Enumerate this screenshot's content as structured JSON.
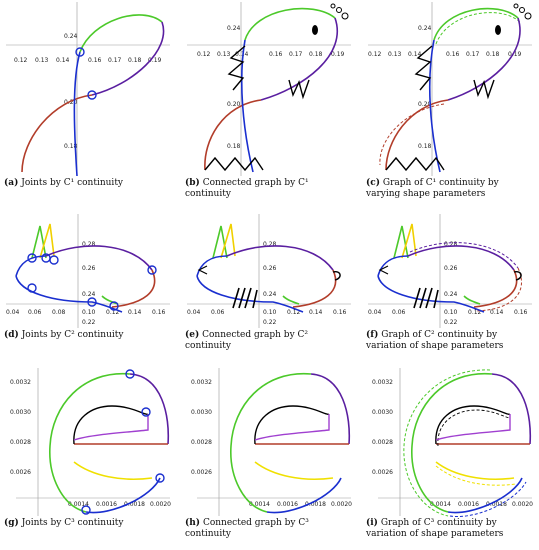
{
  "colors": {
    "green": "#4cc92a",
    "purple": "#5a1fa0",
    "red": "#b23d2a",
    "blue": "#1a2fcf",
    "yellow": "#f0e000",
    "magenta": "#a040d0",
    "black": "#000000"
  },
  "panels": [
    {
      "id": "a",
      "label": "(a)",
      "caption": "Joints by C¹ continuity",
      "xticks": [
        "0.12",
        "0.13",
        "0.14",
        "0.16",
        "0.17",
        "0.18",
        "0.19"
      ],
      "yticks": [
        "0.24",
        "0.20",
        "0.18"
      ]
    },
    {
      "id": "b",
      "label": "(b)",
      "caption": "Connected graph by C¹ continuity",
      "xticks": [
        "0.12",
        "0.13",
        "0.14",
        "0.16",
        "0.17",
        "0.18",
        "0.19"
      ],
      "yticks": [
        "0.24",
        "0.20",
        "0.18"
      ]
    },
    {
      "id": "c",
      "label": "(c)",
      "caption": "Graph of C¹ continuity by varying shape parameters",
      "xticks": [
        "0.12",
        "0.13",
        "0.14",
        "0.16",
        "0.17",
        "0.18",
        "0.19"
      ],
      "yticks": [
        "0.24",
        "0.20",
        "0.18"
      ]
    },
    {
      "id": "d",
      "label": "(d)",
      "caption": "Joints by C² continuity",
      "xticks": [
        "0.04",
        "0.06",
        "0.08",
        "0.10",
        "0.12",
        "0.14",
        "0.16"
      ],
      "yticks": [
        "0.28",
        "0.26",
        "0.24",
        "0.22"
      ]
    },
    {
      "id": "e",
      "label": "(e)",
      "caption": "Connected graph by C² continuity",
      "xticks": [
        "0.04",
        "0.06",
        "0.10",
        "0.12",
        "0.14",
        "0.16"
      ],
      "yticks": [
        "0.28",
        "0.26",
        "0.24",
        "0.22"
      ]
    },
    {
      "id": "f",
      "label": "(f)",
      "caption": "Graph of C² continuity by variation of shape parameters",
      "xticks": [
        "0.04",
        "0.06",
        "0.10",
        "0.12",
        "0.14",
        "0.16"
      ],
      "yticks": [
        "0.28",
        "0.26",
        "0.24",
        "0.22"
      ]
    },
    {
      "id": "g",
      "label": "(g)",
      "caption": "Joints by C³ continuity",
      "xticks": [
        "0.0014",
        "0.0016",
        "0.0018",
        "0.0020"
      ],
      "yticks": [
        "0.0032",
        "0.0030",
        "0.0028",
        "0.0026"
      ]
    },
    {
      "id": "h",
      "label": "(h)",
      "caption": "Connected graph by C³ continuity",
      "xticks": [
        "0.0014",
        "0.0016",
        "0.0018",
        "0.0020"
      ],
      "yticks": [
        "0.0032",
        "0.0030",
        "0.0028",
        "0.0026"
      ]
    },
    {
      "id": "i",
      "label": "(i)",
      "caption": "Graph of C³ continuity by variation of shape parameters",
      "xticks": [
        "0.0014",
        "0.0016",
        "0.0018",
        "0.0020"
      ],
      "yticks": [
        "0.0032",
        "0.0030",
        "0.0028",
        "0.0026"
      ]
    }
  ]
}
